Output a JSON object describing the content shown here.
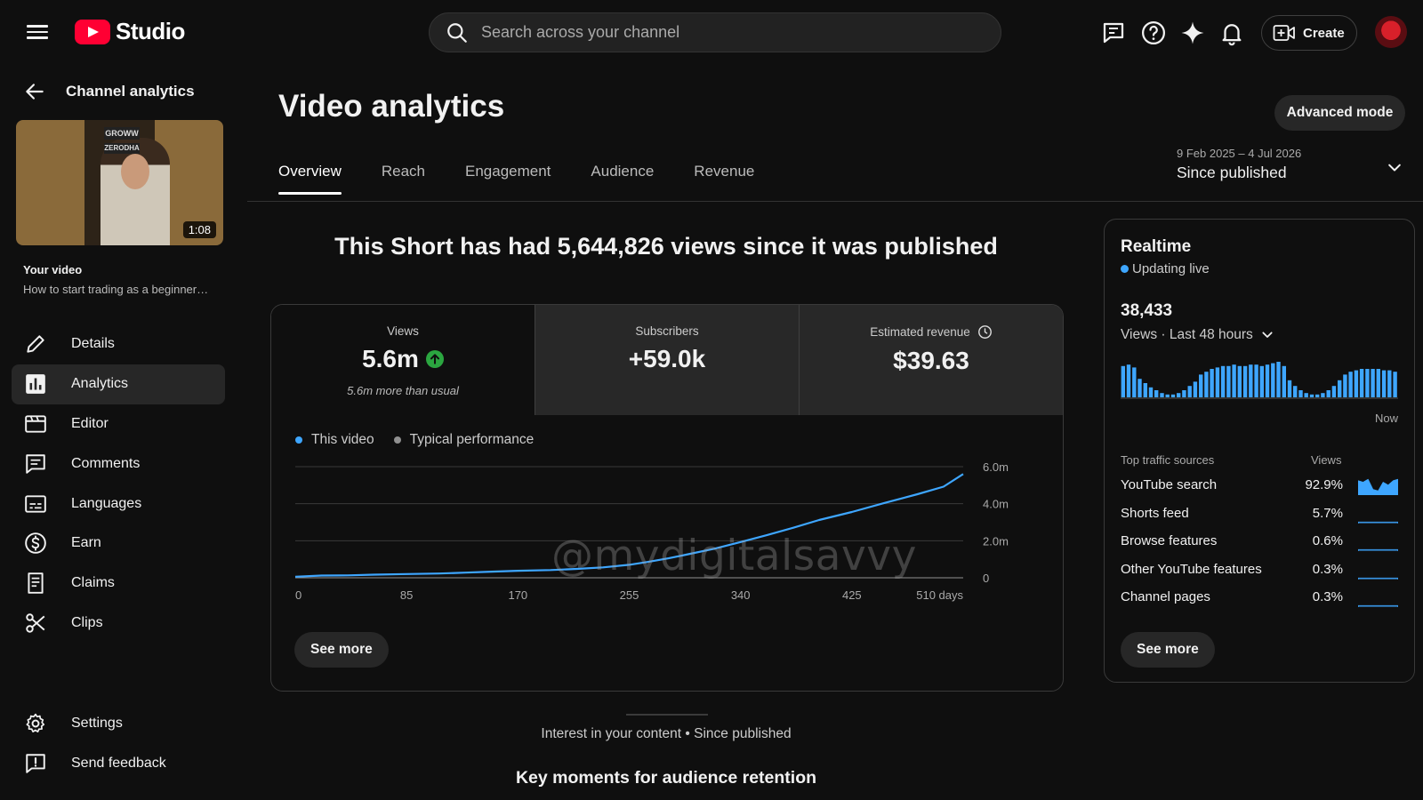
{
  "header": {
    "brand": "Studio",
    "search_placeholder": "Search across your channel",
    "create_label": "Create",
    "icons": [
      "menu-icon",
      "feedback-icon",
      "help-icon",
      "sparkle-icon",
      "bell-icon",
      "create-video-icon"
    ]
  },
  "sidebar": {
    "back_label": "Channel analytics",
    "thumbnail": {
      "duration": "1:08",
      "sign_top": "GROWW",
      "sign_bottom": "ZERODHA"
    },
    "your_video_label": "Your video",
    "video_title": "How to start trading as a beginner…",
    "items": [
      {
        "label": "Details",
        "icon": "pencil-icon"
      },
      {
        "label": "Analytics",
        "icon": "analytics-icon",
        "active": true
      },
      {
        "label": "Editor",
        "icon": "editor-icon"
      },
      {
        "label": "Comments",
        "icon": "comments-icon"
      },
      {
        "label": "Languages",
        "icon": "languages-icon"
      },
      {
        "label": "Earn",
        "icon": "dollar-icon"
      },
      {
        "label": "Claims",
        "icon": "claims-icon"
      },
      {
        "label": "Clips",
        "icon": "scissors-icon"
      }
    ],
    "bottom_items": [
      {
        "label": "Settings",
        "icon": "gear-icon"
      },
      {
        "label": "Send feedback",
        "icon": "feedback-icon"
      }
    ]
  },
  "main": {
    "title": "Video analytics",
    "advanced_mode_label": "Advanced mode",
    "tabs": [
      {
        "label": "Overview",
        "active": true
      },
      {
        "label": "Reach"
      },
      {
        "label": "Engagement"
      },
      {
        "label": "Audience"
      },
      {
        "label": "Revenue"
      }
    ],
    "date_range": {
      "range": "9 Feb 2025 – 4 Jul 2026",
      "label": "Since published"
    },
    "headline": "This Short has had 5,644,826 views since it was published",
    "metrics": [
      {
        "label": "Views",
        "value": "5.6m",
        "sub": "5.6m more than usual",
        "trend": "up"
      },
      {
        "label": "Subscribers",
        "value": "+59.0k"
      },
      {
        "label": "Estimated revenue",
        "value": "$39.63",
        "info_icon": "clock-icon"
      }
    ],
    "legend": [
      {
        "label": "This video",
        "color": "#3ea6ff"
      },
      {
        "label": "Typical performance",
        "color": "#909090"
      }
    ],
    "see_more_label": "See more",
    "watermark": "@mydigitalsavvy",
    "interest_label": "Interest in your content • Since published",
    "key_moments_title": "Key moments for audience retention"
  },
  "chart_data": {
    "type": "line",
    "x_ticks": [
      "0",
      "85",
      "170",
      "255",
      "340",
      "425",
      "510 days"
    ],
    "y_ticks": [
      "6.0m",
      "4.0m",
      "2.0m",
      "0"
    ],
    "xlim": [
      0,
      510
    ],
    "ylim": [
      0,
      6000000
    ],
    "series": [
      {
        "name": "This video",
        "color": "#3ea6ff",
        "x": [
          0,
          20,
          40,
          60,
          85,
          110,
          130,
          150,
          170,
          195,
          215,
          235,
          255,
          270,
          285,
          300,
          320,
          340,
          360,
          380,
          400,
          425,
          450,
          475,
          495,
          510
        ],
        "y": [
          60000,
          120000,
          130000,
          170000,
          200000,
          230000,
          280000,
          330000,
          380000,
          420000,
          480000,
          560000,
          700000,
          870000,
          1050000,
          1270000,
          1570000,
          1930000,
          2300000,
          2700000,
          3120000,
          3550000,
          4040000,
          4510000,
          4920000,
          5600000
        ]
      }
    ],
    "grid": true
  },
  "realtime": {
    "title": "Realtime",
    "live_label": "Updating live",
    "count": "38,433",
    "period_label": "Views · Last 48 hours",
    "bars": [
      22,
      23,
      21,
      13,
      10,
      7,
      5,
      3,
      2,
      2,
      3,
      5,
      8,
      11,
      16,
      18,
      20,
      21,
      22,
      22,
      23,
      22,
      22,
      23,
      23,
      22,
      23,
      24,
      25,
      22,
      12,
      8,
      5,
      3,
      2,
      2,
      3,
      5,
      8,
      12,
      16,
      18,
      19,
      20,
      20,
      20,
      20,
      19,
      19,
      18
    ],
    "now_label": "Now",
    "sources_header": "Top traffic sources",
    "views_header": "Views",
    "sources": [
      {
        "name": "YouTube search",
        "pct": "92.9%",
        "spark": [
          10,
          9,
          11,
          4,
          3,
          9,
          7,
          10,
          11
        ]
      },
      {
        "name": "Shorts feed",
        "pct": "5.7%",
        "spark": [
          1,
          1,
          1,
          1,
          1,
          1,
          1,
          1,
          1
        ]
      },
      {
        "name": "Browse features",
        "pct": "0.6%",
        "spark": [
          1,
          1,
          1,
          1,
          1,
          1,
          1,
          1,
          1
        ]
      },
      {
        "name": "Other YouTube features",
        "pct": "0.3%",
        "spark": [
          1,
          1,
          1,
          1,
          1,
          1,
          1,
          1,
          1
        ]
      },
      {
        "name": "Channel pages",
        "pct": "0.3%",
        "spark": [
          1,
          1,
          1,
          1,
          1,
          1,
          1,
          1,
          1
        ]
      }
    ],
    "see_more_label": "See more"
  }
}
